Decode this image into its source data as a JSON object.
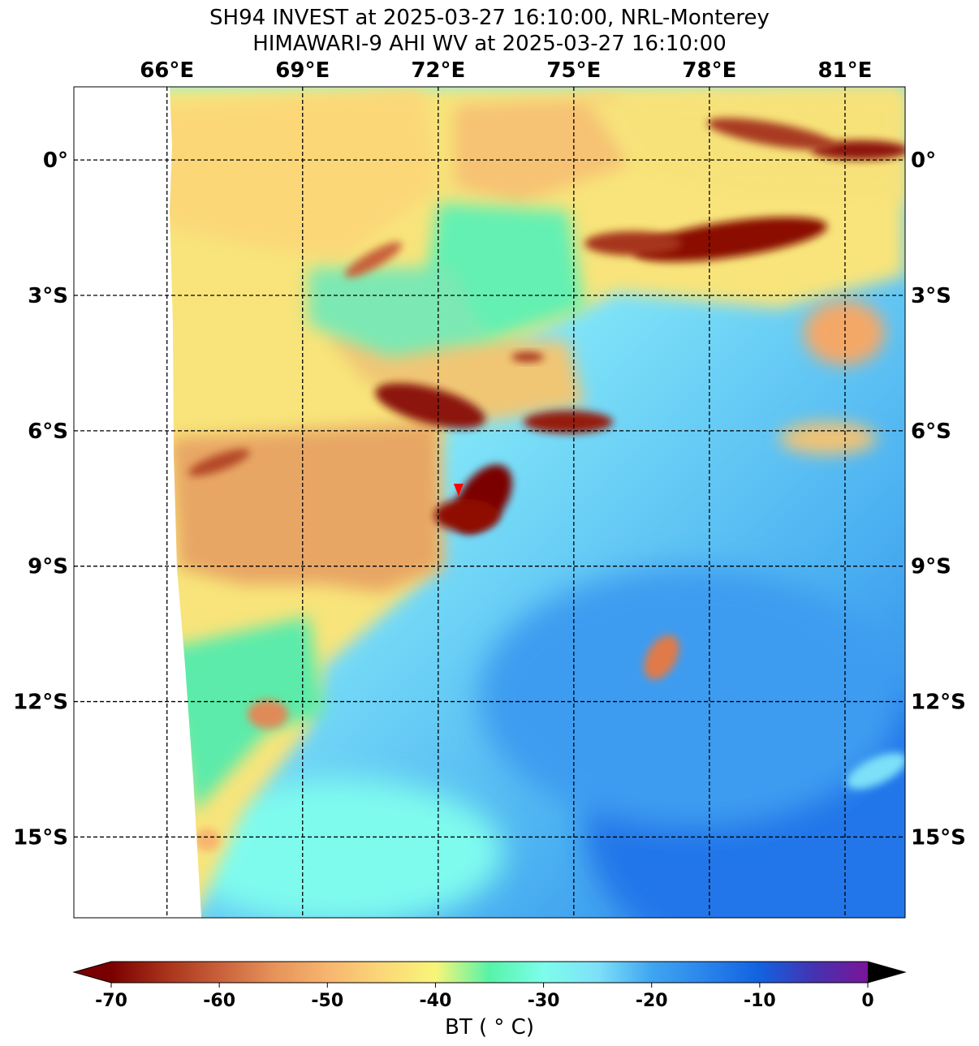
{
  "title": {
    "line1": "SH94 INVEST at 2025-03-27 16:10:00, NRL-Monterey",
    "line2": "HIMAWARI-9 AHI WV at 2025-03-27 16:10:00"
  },
  "map": {
    "lon_labels": [
      "66°E",
      "69°E",
      "72°E",
      "75°E",
      "78°E",
      "81°E"
    ],
    "lat_labels": [
      "0°",
      "3°S",
      "6°S",
      "9°S",
      "12°S",
      "15°S"
    ],
    "lon_values": [
      66,
      69,
      72,
      75,
      78,
      81
    ],
    "lat_values": [
      0,
      -3,
      -6,
      -9,
      -12,
      -15
    ],
    "extent": {
      "lon_min": 63.94,
      "lon_max": 82.33,
      "lat_min": -16.79,
      "lat_max": 1.62
    },
    "storm_center": {
      "lon": 72.45,
      "lat": -7.3,
      "color": "#ff0000"
    }
  },
  "colorbar": {
    "label": "BT ( $^\\circ$C)",
    "label_display": "BT ( ° C)",
    "ticks": [
      "-70",
      "-60",
      "-50",
      "-40",
      "-30",
      "-20",
      "-10",
      "0"
    ],
    "tick_values": [
      -70,
      -60,
      -50,
      -40,
      -30,
      -20,
      -10,
      0
    ],
    "range": [
      -70,
      0
    ],
    "colormap_stops": [
      {
        "v": -70,
        "c": "#7a0000"
      },
      {
        "v": -65,
        "c": "#a8321a"
      },
      {
        "v": -60,
        "c": "#c8603a"
      },
      {
        "v": -55,
        "c": "#e6925a"
      },
      {
        "v": -50,
        "c": "#f7b56e"
      },
      {
        "v": -45,
        "c": "#fbd778"
      },
      {
        "v": -40,
        "c": "#f8f579"
      },
      {
        "v": -35,
        "c": "#57f3a8"
      },
      {
        "v": -30,
        "c": "#7dfdeb"
      },
      {
        "v": -25,
        "c": "#7ee0f8"
      },
      {
        "v": -20,
        "c": "#3fa6f0"
      },
      {
        "v": -15,
        "c": "#2a84ec"
      },
      {
        "v": -10,
        "c": "#1262e0"
      },
      {
        "v": -5,
        "c": "#4433b0"
      },
      {
        "v": 0,
        "c": "#7a1499"
      }
    ],
    "under_color": "#7a0000",
    "over_color": "#000000"
  }
}
